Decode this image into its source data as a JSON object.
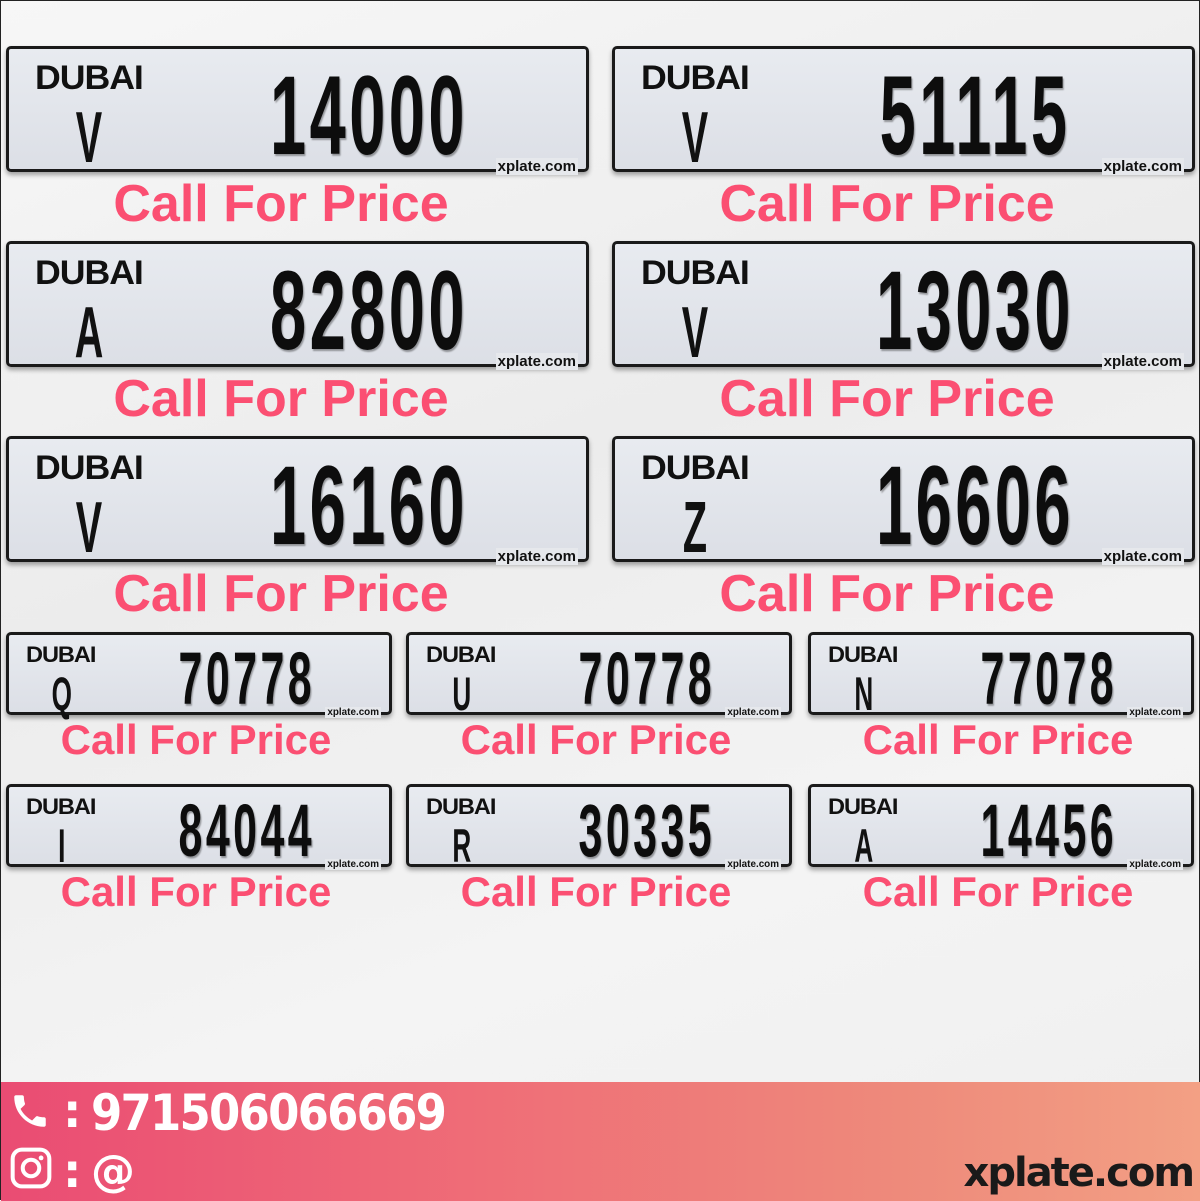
{
  "plates": [
    {
      "emirate": "DUBAI",
      "code": "V",
      "number": "14000",
      "watermark": "xplate.com",
      "price": "Call For Price"
    },
    {
      "emirate": "DUBAI",
      "code": "V",
      "number": "51115",
      "watermark": "xplate.com",
      "price": "Call For Price"
    },
    {
      "emirate": "DUBAI",
      "code": "A",
      "number": "82800",
      "watermark": "xplate.com",
      "price": "Call For Price"
    },
    {
      "emirate": "DUBAI",
      "code": "V",
      "number": "13030",
      "watermark": "xplate.com",
      "price": "Call For Price"
    },
    {
      "emirate": "DUBAI",
      "code": "V",
      "number": "16160",
      "watermark": "xplate.com",
      "price": "Call For Price"
    },
    {
      "emirate": "DUBAI",
      "code": "Z",
      "number": "16606",
      "watermark": "xplate.com",
      "price": "Call For Price"
    },
    {
      "emirate": "DUBAI",
      "code": "Q",
      "number": "70778",
      "watermark": "xplate.com",
      "price": "Call For Price"
    },
    {
      "emirate": "DUBAI",
      "code": "U",
      "number": "70778",
      "watermark": "xplate.com",
      "price": "Call For Price"
    },
    {
      "emirate": "DUBAI",
      "code": "N",
      "number": "77078",
      "watermark": "xplate.com",
      "price": "Call For Price"
    },
    {
      "emirate": "DUBAI",
      "code": "I",
      "number": "84044",
      "watermark": "xplate.com",
      "price": "Call For Price"
    },
    {
      "emirate": "DUBAI",
      "code": "R",
      "number": "30335",
      "watermark": "xplate.com",
      "price": "Call For Price"
    },
    {
      "emirate": "DUBAI",
      "code": "A",
      "number": "14456",
      "watermark": "xplate.com",
      "price": "Call For Price"
    }
  ],
  "footer": {
    "phone_sep": ":",
    "phone": "971506066669",
    "instagram_sep": ":",
    "instagram": "@",
    "site": "xplate.com",
    "icons": [
      "phone-icon",
      "instagram-icon"
    ]
  },
  "colors": {
    "price": "#fb4f72",
    "footer_start": "#ea4c73",
    "footer_end": "#f3a084"
  }
}
